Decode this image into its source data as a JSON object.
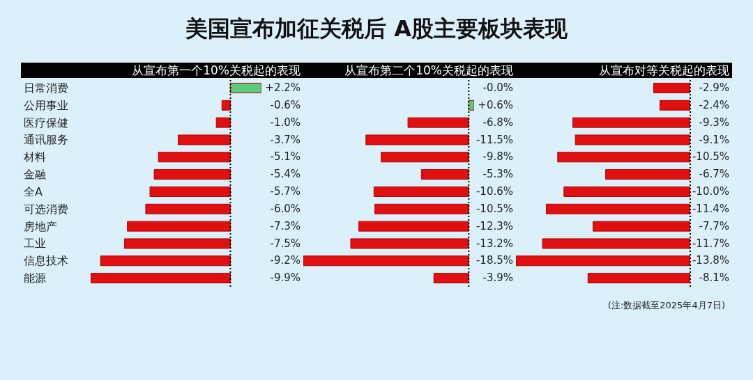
{
  "chart_data": [
    {
      "type": "bar",
      "orientation": "horizontal",
      "title": "美国宣布加征关税后 A股主要板块表现",
      "subtitle": "从宣布第一个10%关税起的表现",
      "tick_labels": "y",
      "categories": [
        "日常消费",
        "公用事业",
        "医疗保健",
        "通讯服务",
        "材料",
        "金融",
        "全A",
        "可选消费",
        "房地产",
        "工业",
        "信息技术",
        "能源"
      ],
      "values": [
        2.2,
        -0.6,
        -1.0,
        -3.7,
        -5.1,
        -5.4,
        -5.7,
        -6.0,
        -7.3,
        -7.5,
        -9.2,
        -9.9
      ],
      "colors": [
        "#5fc97a",
        "#e01010",
        "#e01010",
        "#e01010",
        "#e01010",
        "#e01010",
        "#e01010",
        "#e01010",
        "#e01010",
        "#e01010",
        "#e01010",
        "#e01010"
      ],
      "value_labels": [
        "+2.2%",
        "-0.6%",
        "-1.0%",
        "-3.7%",
        "-5.1%",
        "-5.4%",
        "-5.7%",
        "-6.0%",
        "-7.3%",
        "-7.5%",
        "-9.2%",
        "-9.9%"
      ],
      "ref_lines": [
        {
          "axis": "x",
          "value": 0,
          "color": "#000000",
          "line_style": "dotted"
        }
      ]
    },
    {
      "type": "bar",
      "orientation": "horizontal",
      "subtitle": "从宣布第二个10%关税起的表现",
      "tick_labels": false,
      "values": [
        0,
        0.6,
        -6.8,
        -11.5,
        -9.8,
        -5.3,
        -10.6,
        -10.5,
        -12.3,
        -13.2,
        -18.5,
        -3.9
      ],
      "colors": [
        "#e01010",
        "#5fc97a",
        "#e01010",
        "#e01010",
        "#e01010",
        "#e01010",
        "#e01010",
        "#e01010",
        "#e01010",
        "#e01010",
        "#e01010",
        "#e01010"
      ],
      "value_labels": [
        "-0.0%",
        "+0.6%",
        "-6.8%",
        "-11.5%",
        "-9.8%",
        "-5.3%",
        "-10.6%",
        "-10.5%",
        "-12.3%",
        "-13.2%",
        "-18.5%",
        "-3.9%"
      ],
      "ref_lines": [
        {
          "axis": "x",
          "value": 0,
          "color": "#000000",
          "line_style": "dotted"
        }
      ]
    },
    {
      "type": "bar",
      "orientation": "horizontal",
      "subtitle": "从宣布对等关税起的表现",
      "tick_labels": false,
      "values": [
        -2.9,
        -2.4,
        -9.3,
        -9.1,
        -10.5,
        -6.7,
        -10.0,
        -11.4,
        -7.7,
        -11.7,
        -13.8,
        -8.1
      ],
      "colors": [
        "#e01010",
        "#e01010",
        "#e01010",
        "#e01010",
        "#e01010",
        "#e01010",
        "#e01010",
        "#e01010",
        "#e01010",
        "#e01010",
        "#e01010",
        "#e01010"
      ],
      "value_labels": [
        "-2.9%",
        "-2.4%",
        "-9.3%",
        "-9.1%",
        "-10.5%",
        "-6.7%",
        "-10.0%",
        "-11.4%",
        "-7.7%",
        "-11.7%",
        "-13.8%",
        "-8.1%"
      ],
      "ref_lines": [
        {
          "axis": "x",
          "value": 0,
          "color": "#000000",
          "line_style": "dotted"
        }
      ],
      "annotations": [
        "(注:数据截至2025年4月7日)"
      ]
    }
  ]
}
